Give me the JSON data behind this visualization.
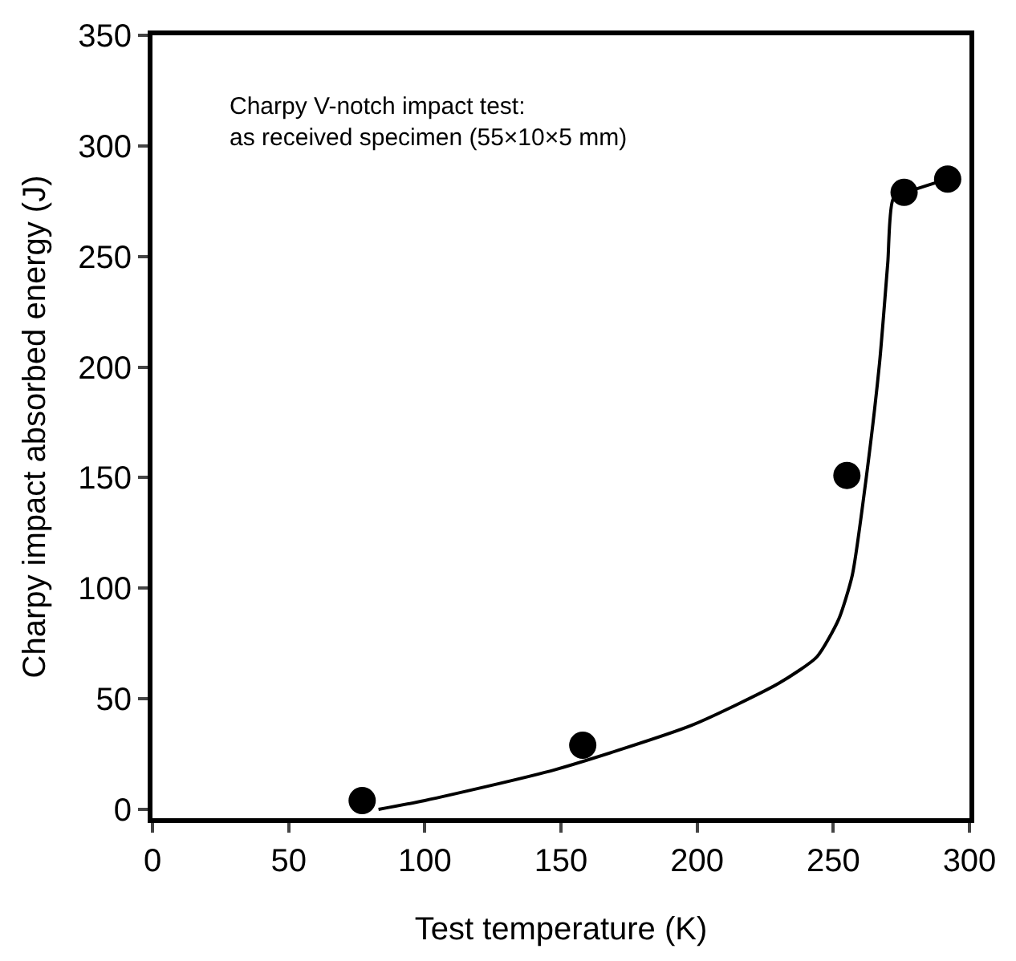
{
  "chart_data": {
    "type": "scatter",
    "xlabel": "Test temperature (K)",
    "ylabel": "Charpy impact absorbed energy (J)",
    "annotations": [
      "Charpy V-notch impact test:\nas received specimen (55×10×5 mm)"
    ],
    "series": [
      {
        "color": "#000000",
        "marker": "circle",
        "x": [
          77,
          158,
          255,
          276,
          292
        ],
        "values": [
          4,
          29,
          151,
          279,
          285
        ]
      },
      {
        "type": "line",
        "color": "#000000",
        "marker": "none",
        "line_style": "solid",
        "x": [
          83,
          100,
          148,
          198,
          230,
          244,
          252,
          257,
          262,
          267,
          270,
          272,
          277,
          292
        ],
        "values": [
          0,
          4,
          18,
          38,
          57,
          69,
          86,
          106,
          149,
          202,
          247,
          276,
          279,
          285
        ]
      }
    ],
    "xlim": [
      0,
      300
    ],
    "xticks": [
      0,
      50,
      100,
      150,
      200,
      250,
      300
    ],
    "ylim": [
      -4,
      350
    ],
    "yticks": [
      0,
      50,
      100,
      150,
      200,
      250,
      300,
      350
    ]
  }
}
